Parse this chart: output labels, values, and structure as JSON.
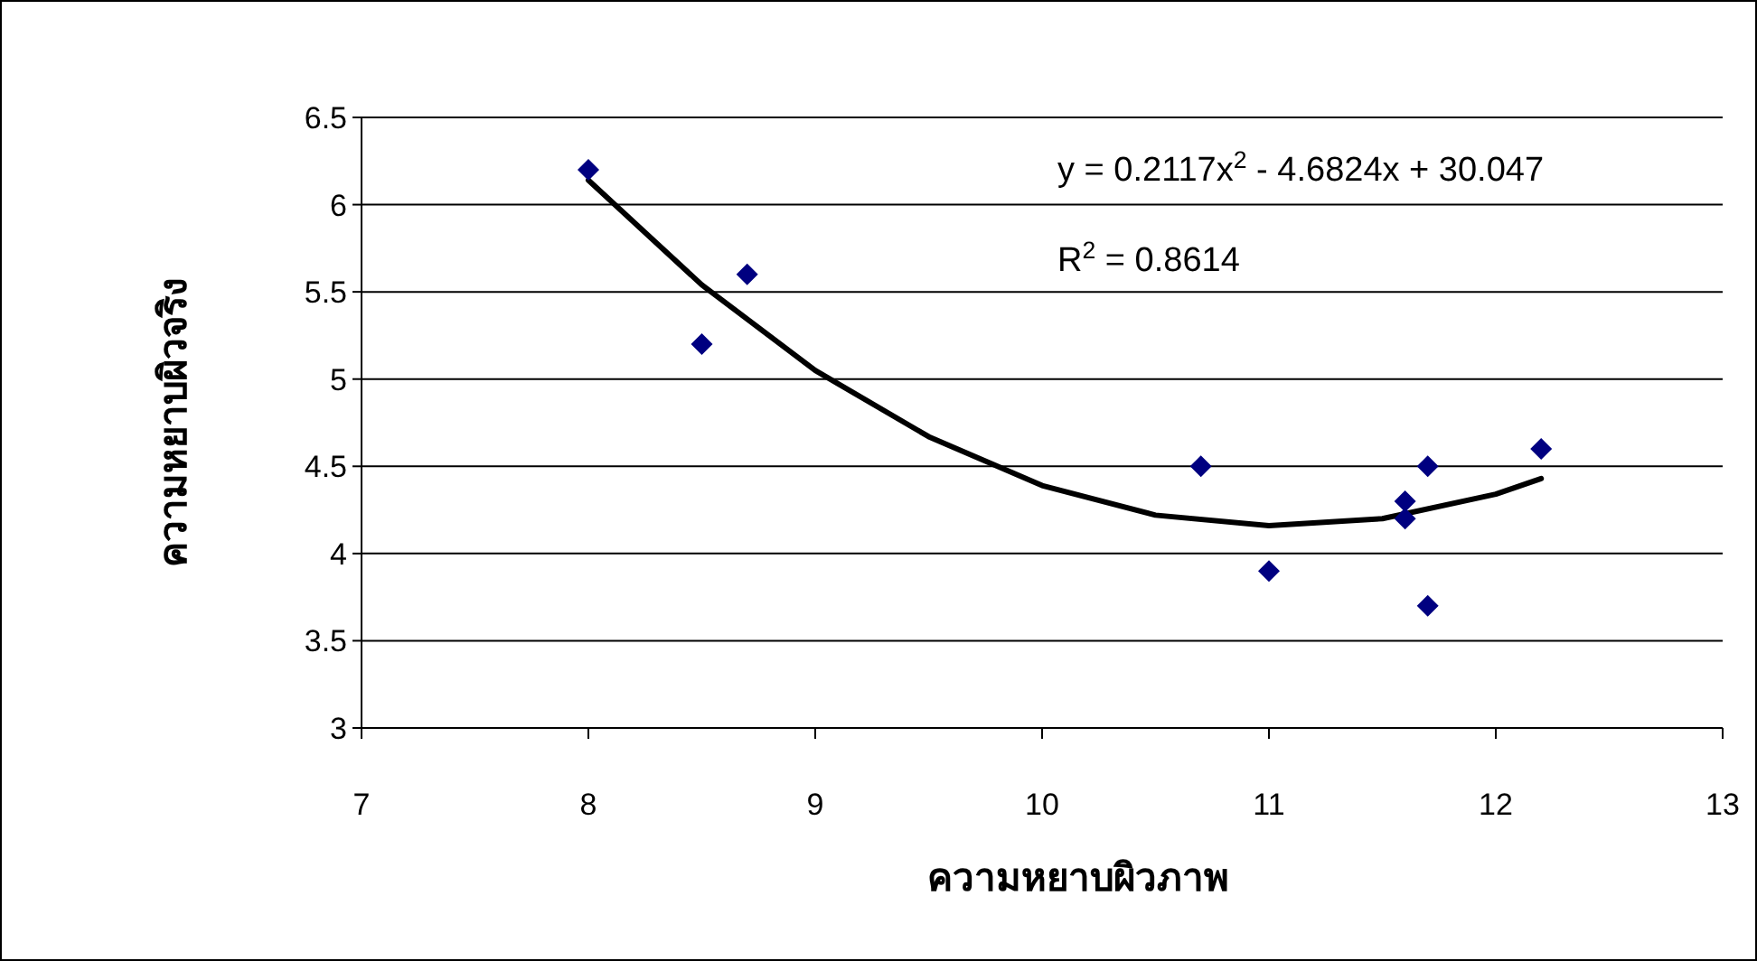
{
  "chart_data": {
    "type": "scatter",
    "xlabel": "ความหยาบผิวภาพ",
    "ylabel": "ความหยาบผิวจริง",
    "xlim": [
      7,
      13
    ],
    "xticks": [
      7,
      8,
      9,
      10,
      11,
      12,
      13
    ],
    "ylim": [
      3,
      6.5
    ],
    "yticks": [
      3,
      3.5,
      4,
      4.5,
      5,
      5.5,
      6,
      6.5
    ],
    "grid": "y",
    "series": [
      {
        "marker": "diamond",
        "color": "#000080",
        "x": [
          8,
          8.5,
          8.7,
          10.7,
          11,
          11.6,
          11.6,
          11.7,
          11.7,
          12.2
        ],
        "values": [
          6.2,
          5.2,
          5.6,
          4.5,
          3.9,
          4.3,
          4.2,
          4.5,
          3.7,
          4.6
        ]
      },
      {
        "type": "line",
        "color": "#000000",
        "x": [
          8,
          8.5,
          9,
          9.5,
          10,
          10.5,
          11,
          11.5,
          12,
          12.2
        ],
        "values": [
          6.14,
          5.54,
          5.05,
          4.67,
          4.39,
          4.22,
          4.16,
          4.2,
          4.34,
          4.43
        ]
      }
    ],
    "annotations": [
      "y = 0.2117x$^{2}$ - 4.6824x + 30.047",
      "R$^{2}$ = 0.8614"
    ]
  }
}
